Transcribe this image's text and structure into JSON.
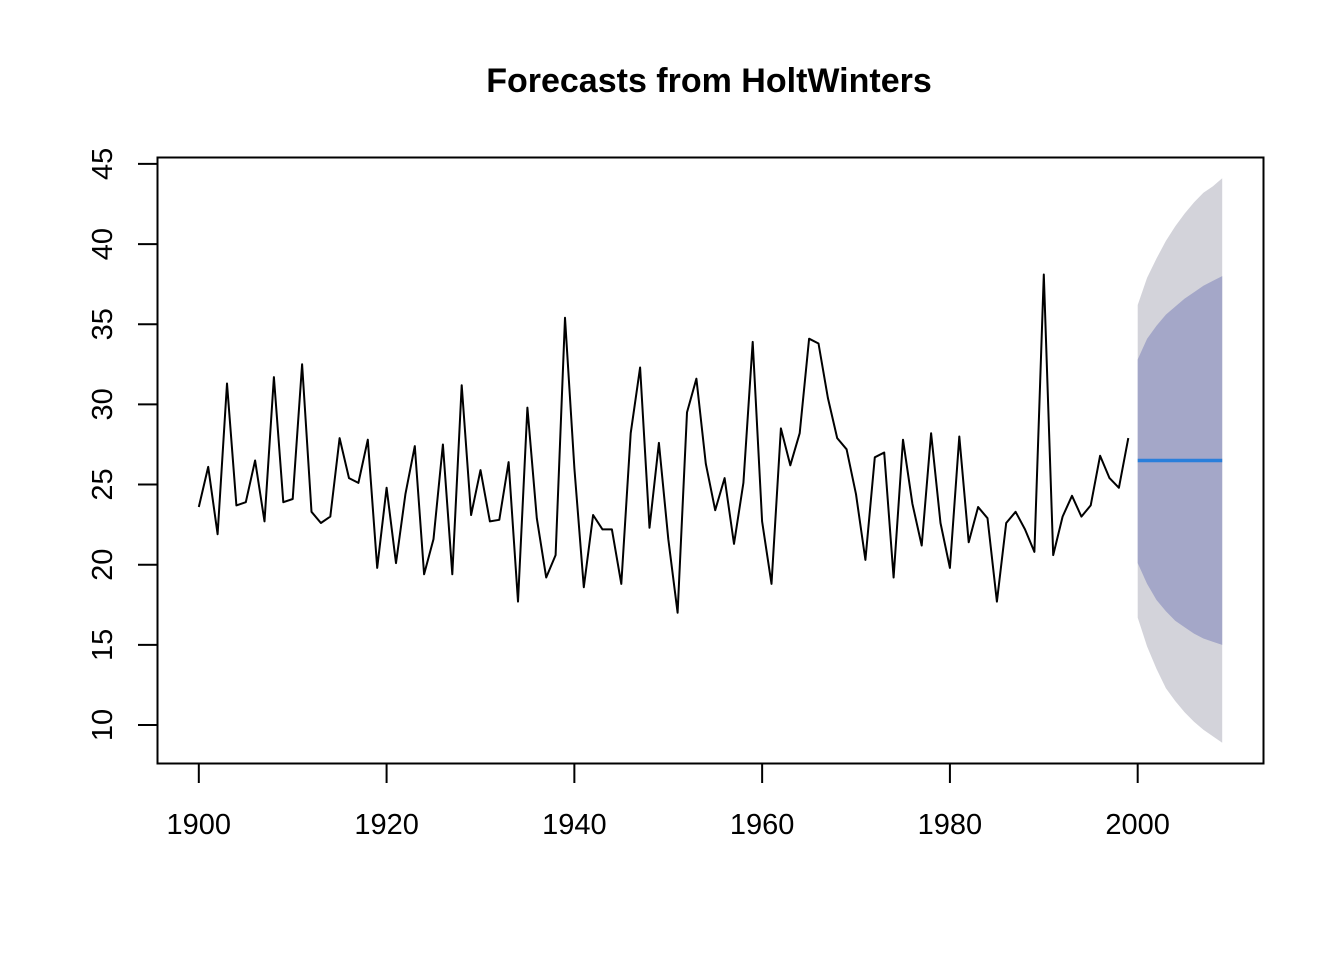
{
  "chart_data": {
    "type": "line",
    "title": "Forecasts from HoltWinters",
    "xlabel": "",
    "ylabel": "",
    "xlim": [
      1895.6,
      2013.4
    ],
    "ylim": [
      7.6,
      45.4
    ],
    "x_ticks": [
      1900,
      1920,
      1940,
      1960,
      1980,
      2000
    ],
    "y_ticks": [
      10,
      15,
      20,
      25,
      30,
      35,
      40,
      45
    ],
    "grid": false,
    "series": [
      {
        "role": "observed",
        "color": "#000000",
        "x_start": 1900,
        "values": [
          23.6,
          26.1,
          21.9,
          31.3,
          23.7,
          23.9,
          26.5,
          22.7,
          31.7,
          23.9,
          24.1,
          32.5,
          23.3,
          22.6,
          23.0,
          27.9,
          25.4,
          25.1,
          27.8,
          19.8,
          24.8,
          20.1,
          24.4,
          27.4,
          19.4,
          21.6,
          27.5,
          19.4,
          31.2,
          23.1,
          25.9,
          22.7,
          22.8,
          26.4,
          17.7,
          29.8,
          22.9,
          19.2,
          20.6,
          35.4,
          26.0,
          18.6,
          23.1,
          22.2,
          22.2,
          18.8,
          28.2,
          32.3,
          22.3,
          27.6,
          21.6,
          17.0,
          29.5,
          31.6,
          26.3,
          23.4,
          25.4,
          21.3,
          25.1,
          33.9,
          22.7,
          18.8,
          28.5,
          26.2,
          28.2,
          34.1,
          33.8,
          30.4,
          27.9,
          27.2,
          24.4,
          20.3,
          26.7,
          27.0,
          19.2,
          27.8,
          23.8,
          21.2,
          28.2,
          22.6,
          19.8,
          28.0,
          21.4,
          23.6,
          22.9,
          17.7,
          22.6,
          23.3,
          22.2,
          20.8,
          38.1,
          20.6,
          23.0,
          24.3,
          23.0,
          23.7,
          26.8,
          25.4,
          24.8,
          27.9
        ]
      },
      {
        "role": "point-forecast",
        "color": "#2a7fdb",
        "x": [
          2000,
          2009
        ],
        "values": [
          26.5,
          26.5
        ]
      }
    ],
    "bands": [
      {
        "role": "interval-95",
        "color": "#d3d3da",
        "x": [
          2000,
          2001,
          2002,
          2003,
          2004,
          2005,
          2006,
          2007,
          2008,
          2009
        ],
        "lower": [
          16.7,
          14.9,
          13.5,
          12.3,
          11.5,
          10.8,
          10.2,
          9.7,
          9.3,
          8.9
        ],
        "upper": [
          36.2,
          37.9,
          39.1,
          40.2,
          41.1,
          41.9,
          42.6,
          43.2,
          43.6,
          44.1
        ]
      },
      {
        "role": "interval-80",
        "color": "#a4a7c8",
        "x": [
          2000,
          2001,
          2002,
          2003,
          2004,
          2005,
          2006,
          2007,
          2008,
          2009
        ],
        "lower": [
          20.1,
          18.8,
          17.8,
          17.1,
          16.5,
          16.1,
          15.7,
          15.4,
          15.2,
          15.0
        ],
        "upper": [
          32.8,
          34.1,
          34.9,
          35.6,
          36.1,
          36.6,
          37.0,
          37.4,
          37.7,
          38.0
        ]
      }
    ]
  }
}
